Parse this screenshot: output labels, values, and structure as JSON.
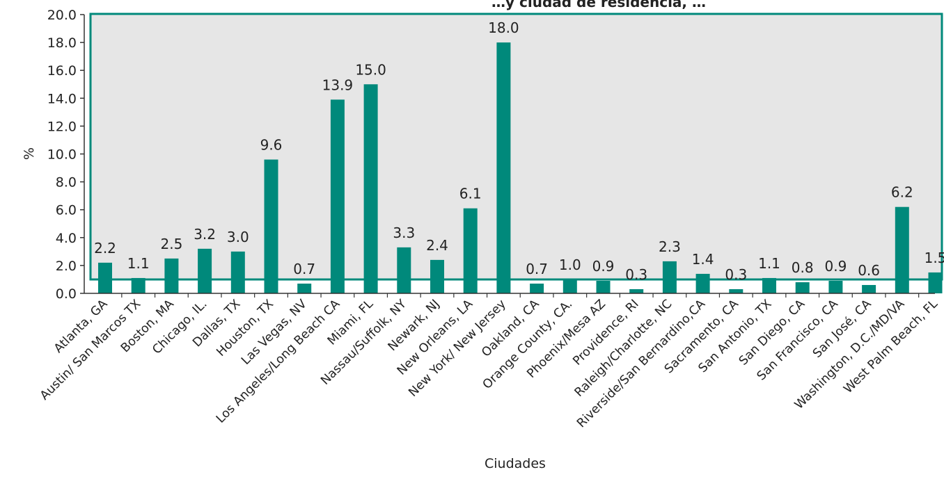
{
  "chart_data": {
    "type": "bar",
    "title": "…y ciudad de residencia, …",
    "xlabel": "Ciudades",
    "ylabel": "%",
    "ylim": [
      0,
      20
    ],
    "yticks": [
      "0.0",
      "2.0",
      "4.0",
      "6.0",
      "8.0",
      "10.0",
      "12.0",
      "14.0",
      "16.0",
      "18.0",
      "20.0"
    ],
    "grid": false,
    "legend": "none",
    "categories": [
      "Atlanta, GA",
      "Austin/ San Marcos TX",
      "Boston, MA",
      "Chicago, IL.",
      "Dallas, TX",
      "Houston, TX",
      "Las Vegas, NV",
      "Los Angeles/Long Beach CA",
      "Miami, FL",
      "Nassau/Suffolk, NY",
      "Newark, NJ",
      "New Orleans, LA",
      "New York/ New Jersey",
      "Oakland, CA",
      "Orange County, CA.",
      "Phoenix/Mesa AZ",
      "Providence, RI",
      "Raleigh/Charlotte, NC",
      "Riverside/San Bernardino,CA",
      "Sacramento, CA",
      "San Antonio, TX",
      "San Diego, CA",
      "San Francisco, CA",
      "San José, CA",
      "Washington, D.C./MD/VA",
      "West Palm Beach, FL"
    ],
    "values": [
      2.2,
      1.1,
      2.5,
      3.2,
      3.0,
      9.6,
      0.7,
      13.9,
      15.0,
      3.3,
      2.4,
      6.1,
      18.0,
      0.7,
      1.0,
      0.9,
      0.3,
      2.3,
      1.4,
      0.3,
      1.1,
      0.8,
      0.9,
      0.6,
      6.2,
      1.5
    ],
    "value_labels": [
      "2.2",
      "1.1",
      "2.5",
      "3.2",
      "3.0",
      "9.6",
      "0.7",
      "13.9",
      "15.0",
      "3.3",
      "2.4",
      "6.1",
      "18.0",
      "0.7",
      "1.0",
      "0.9",
      "0.3",
      "2.3",
      "1.4",
      "0.3",
      "1.1",
      "0.8",
      "0.9",
      "0.6",
      "6.2",
      "1.5"
    ],
    "colors": {
      "bar": "#00897B",
      "plot_background": "#E6E6E6",
      "plot_border": "#00897B",
      "axis": "#333333"
    }
  }
}
